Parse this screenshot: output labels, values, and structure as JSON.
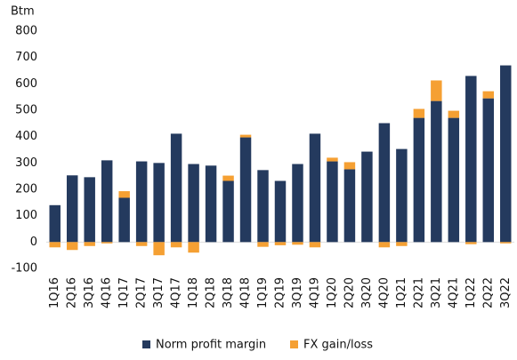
{
  "chart_data": {
    "type": "stacked_bar",
    "y_label": "Btm",
    "categories": [
      "1Q16",
      "2Q16",
      "3Q16",
      "4Q16",
      "1Q17",
      "2Q17",
      "3Q17",
      "4Q17",
      "1Q18",
      "2Q18",
      "3Q18",
      "4Q18",
      "1Q19",
      "2Q19",
      "3Q19",
      "4Q19",
      "1Q20",
      "2Q20",
      "3Q20",
      "4Q20",
      "1Q21",
      "2Q21",
      "3Q21",
      "4Q21",
      "1Q22",
      "2Q22",
      "3Q22"
    ],
    "series": [
      {
        "name": "Norm profit margin",
        "color": "#243a5e",
        "values": [
          140,
          253,
          246,
          310,
          168,
          306,
          300,
          411,
          296,
          290,
          232,
          397,
          273,
          232,
          296,
          411,
          306,
          276,
          343,
          451,
          353,
          471,
          535,
          471,
          630,
          545,
          670
        ]
      },
      {
        "name": "FX gain/loss",
        "color": "#f5a033",
        "values": [
          -20,
          -30,
          -15,
          -5,
          25,
          -15,
          -50,
          -20,
          -40,
          0,
          20,
          10,
          -18,
          -12,
          -10,
          -20,
          14,
          27,
          0,
          -20,
          -15,
          34,
          78,
          27,
          -8,
          27,
          -5
        ]
      }
    ],
    "ylim": [
      -100,
      800
    ],
    "yticks": [
      -100,
      0,
      100,
      200,
      300,
      400,
      500,
      600,
      700,
      800
    ]
  }
}
